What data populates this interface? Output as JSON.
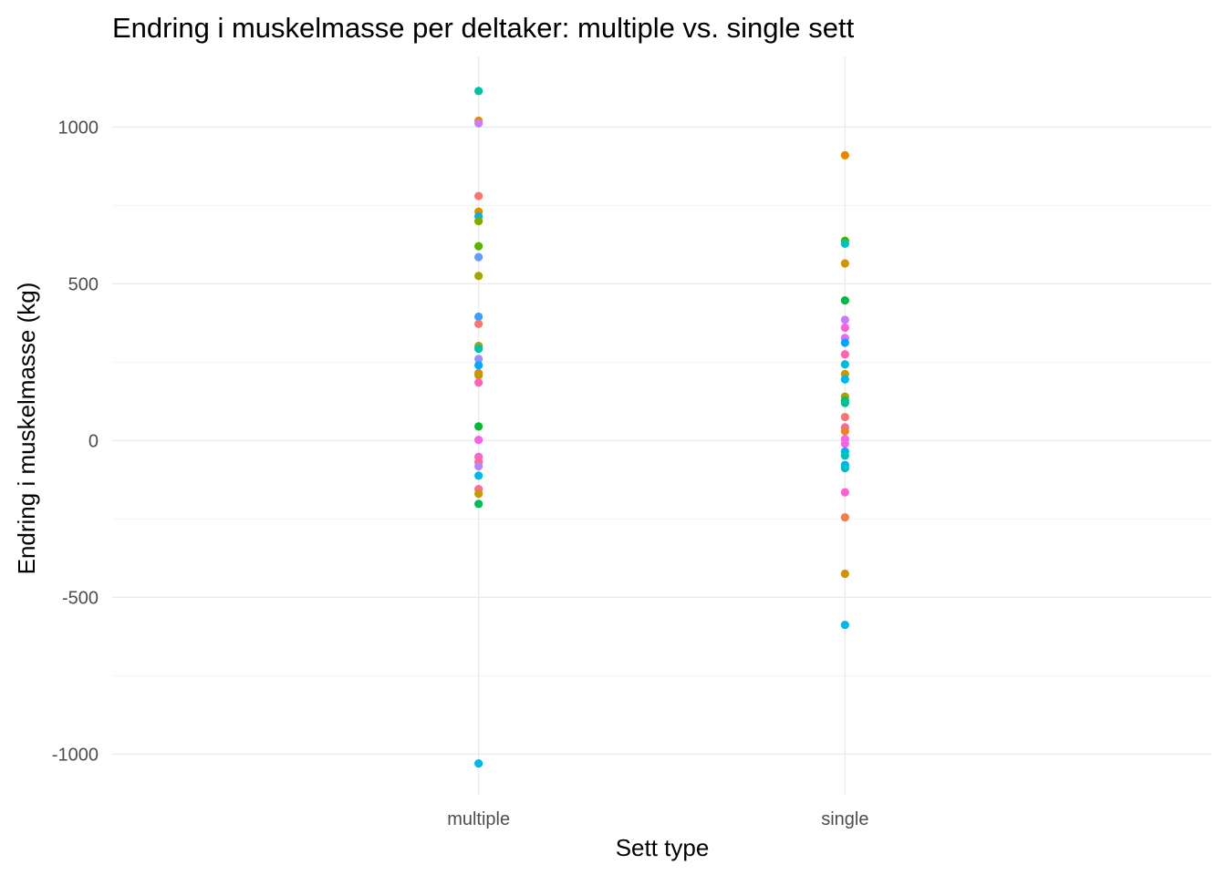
{
  "chart_data": {
    "type": "scatter",
    "title": "Endring i muskelmasse per deltaker: multiple vs. single sett",
    "xlabel": "Sett type",
    "ylabel": "Endring i muskelmasse (kg)",
    "categories": [
      "multiple",
      "single"
    ],
    "ylim": [
      -1130,
      1225
    ],
    "yticks": [
      1000,
      500,
      0,
      -500,
      -1000
    ],
    "ytick_labels": [
      "1000",
      "500",
      "0",
      "-500",
      "-1000"
    ],
    "grid": true,
    "legend": "none",
    "points": [
      {
        "x": "multiple",
        "y": 1115,
        "color": "#00BFA5"
      },
      {
        "x": "multiple",
        "y": 1020,
        "color": "#E08B00"
      },
      {
        "x": "multiple",
        "y": 1012,
        "color": "#C77CFF"
      },
      {
        "x": "multiple",
        "y": 780,
        "color": "#F8766D"
      },
      {
        "x": "multiple",
        "y": 730,
        "color": "#D89000"
      },
      {
        "x": "multiple",
        "y": 715,
        "color": "#00B0F6"
      },
      {
        "x": "multiple",
        "y": 700,
        "color": "#7CAE00"
      },
      {
        "x": "multiple",
        "y": 620,
        "color": "#5BB300"
      },
      {
        "x": "multiple",
        "y": 585,
        "color": "#619CFF"
      },
      {
        "x": "multiple",
        "y": 525,
        "color": "#A3A500"
      },
      {
        "x": "multiple",
        "y": 395,
        "color": "#35A2FF"
      },
      {
        "x": "multiple",
        "y": 372,
        "color": "#F8766D"
      },
      {
        "x": "multiple",
        "y": 302,
        "color": "#B79F00"
      },
      {
        "x": "multiple",
        "y": 293,
        "color": "#00C1AA"
      },
      {
        "x": "multiple",
        "y": 260,
        "color": "#9590FF"
      },
      {
        "x": "multiple",
        "y": 240,
        "color": "#00A9FF"
      },
      {
        "x": "multiple",
        "y": 215,
        "color": "#E7861B"
      },
      {
        "x": "multiple",
        "y": 208,
        "color": "#C49A00"
      },
      {
        "x": "multiple",
        "y": 185,
        "color": "#FF62BC"
      },
      {
        "x": "multiple",
        "y": 45,
        "color": "#00BA38"
      },
      {
        "x": "multiple",
        "y": 2,
        "color": "#F564E3"
      },
      {
        "x": "multiple",
        "y": -52,
        "color": "#FC61D5"
      },
      {
        "x": "multiple",
        "y": -68,
        "color": "#FF6C91"
      },
      {
        "x": "multiple",
        "y": -82,
        "color": "#B983FF"
      },
      {
        "x": "multiple",
        "y": -112,
        "color": "#00B9E3"
      },
      {
        "x": "multiple",
        "y": -155,
        "color": "#FF6A98"
      },
      {
        "x": "multiple",
        "y": -170,
        "color": "#C99800"
      },
      {
        "x": "multiple",
        "y": -202,
        "color": "#00BC56"
      },
      {
        "x": "multiple",
        "y": -1030,
        "color": "#00B8E7"
      },
      {
        "x": "single",
        "y": 910,
        "color": "#E58700"
      },
      {
        "x": "single",
        "y": 637,
        "color": "#39B600"
      },
      {
        "x": "single",
        "y": 628,
        "color": "#00BFC4"
      },
      {
        "x": "single",
        "y": 565,
        "color": "#D39200"
      },
      {
        "x": "single",
        "y": 447,
        "color": "#00BA42"
      },
      {
        "x": "single",
        "y": 385,
        "color": "#C77CFF"
      },
      {
        "x": "single",
        "y": 360,
        "color": "#FB61D7"
      },
      {
        "x": "single",
        "y": 327,
        "color": "#E76BF3"
      },
      {
        "x": "single",
        "y": 312,
        "color": "#00A5FF"
      },
      {
        "x": "single",
        "y": 275,
        "color": "#FF64B0"
      },
      {
        "x": "single",
        "y": 243,
        "color": "#00BCD8"
      },
      {
        "x": "single",
        "y": 212,
        "color": "#C49A00"
      },
      {
        "x": "single",
        "y": 195,
        "color": "#00B4F0"
      },
      {
        "x": "single",
        "y": 140,
        "color": "#ABA300"
      },
      {
        "x": "single",
        "y": 128,
        "color": "#00BF7D"
      },
      {
        "x": "single",
        "y": 120,
        "color": "#00C08B"
      },
      {
        "x": "single",
        "y": 75,
        "color": "#F8766D"
      },
      {
        "x": "single",
        "y": 42,
        "color": "#FF67A4"
      },
      {
        "x": "single",
        "y": 30,
        "color": "#E88526"
      },
      {
        "x": "single",
        "y": 5,
        "color": "#EF67EB"
      },
      {
        "x": "single",
        "y": -10,
        "color": "#F564E3"
      },
      {
        "x": "single",
        "y": -35,
        "color": "#00B0F6"
      },
      {
        "x": "single",
        "y": -48,
        "color": "#00C0B8"
      },
      {
        "x": "single",
        "y": -78,
        "color": "#00B0F6"
      },
      {
        "x": "single",
        "y": -88,
        "color": "#00BFC4"
      },
      {
        "x": "single",
        "y": -165,
        "color": "#FC61D5"
      },
      {
        "x": "single",
        "y": -245,
        "color": "#F07E4A"
      },
      {
        "x": "single",
        "y": -425,
        "color": "#D39200"
      },
      {
        "x": "single",
        "y": -588,
        "color": "#00B8E7"
      }
    ]
  }
}
